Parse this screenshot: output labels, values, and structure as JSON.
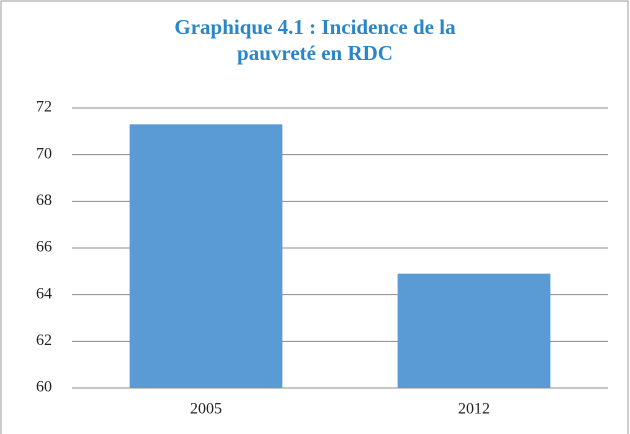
{
  "chart_data": {
    "type": "bar",
    "title": "Graphique 4.1 : Incidence de la pauvreté en RDC",
    "categories": [
      "2005",
      "2012"
    ],
    "values": [
      71.3,
      64.9
    ],
    "color": "#5b9bd5",
    "ylim": [
      60,
      72
    ],
    "yticks": [
      60,
      62,
      64,
      66,
      68,
      70,
      72
    ],
    "grid": true
  }
}
